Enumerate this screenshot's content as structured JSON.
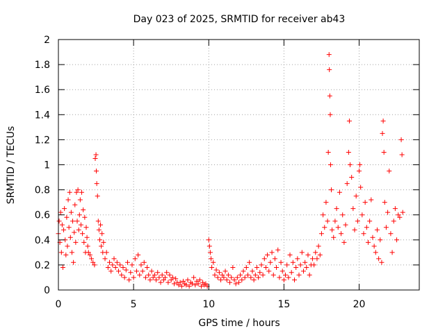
{
  "chart_data": {
    "type": "scatter",
    "title": "Day 023 of 2025, SRMTID for receiver ab43",
    "xlabel": "GPS time / hours",
    "ylabel": "SRMTID / TECUs",
    "xlim": [
      0,
      24
    ],
    "ylim": [
      0,
      2
    ],
    "xticks": [
      0,
      5,
      10,
      15,
      20
    ],
    "xtick_labels": [
      "0",
      "5",
      "10",
      "15",
      "20"
    ],
    "yticks": [
      0,
      0.2,
      0.4,
      0.6,
      0.8,
      1,
      1.2,
      1.4,
      1.6,
      1.8,
      2
    ],
    "ytick_labels": [
      "0",
      "0.2",
      "0.4",
      "0.6",
      "0.8",
      "1",
      "1.2",
      "1.4",
      "1.6",
      "1.8",
      "2"
    ],
    "grid": true,
    "marker": "+",
    "color": "#ff0000",
    "series": [
      {
        "name": "SRMTID",
        "points": [
          [
            0.0,
            0.45
          ],
          [
            0.05,
            0.55
          ],
          [
            0.1,
            0.38
          ],
          [
            0.15,
            0.62
          ],
          [
            0.2,
            0.3
          ],
          [
            0.25,
            0.52
          ],
          [
            0.3,
            0.18
          ],
          [
            0.35,
            0.48
          ],
          [
            0.4,
            0.65
          ],
          [
            0.45,
            0.4
          ],
          [
            0.5,
            0.28
          ],
          [
            0.55,
            0.58
          ],
          [
            0.6,
            0.35
          ],
          [
            0.65,
            0.72
          ],
          [
            0.7,
            0.5
          ],
          [
            0.75,
            0.78
          ],
          [
            0.8,
            0.42
          ],
          [
            0.85,
            0.62
          ],
          [
            0.9,
            0.3
          ],
          [
            0.95,
            0.55
          ],
          [
            1.0,
            0.22
          ],
          [
            1.05,
            0.46
          ],
          [
            1.1,
            0.68
          ],
          [
            1.15,
            0.38
          ],
          [
            1.2,
            0.78
          ],
          [
            1.25,
            0.55
          ],
          [
            1.3,
            0.8
          ],
          [
            1.35,
            0.48
          ],
          [
            1.4,
            0.6
          ],
          [
            1.45,
            0.72
          ],
          [
            1.5,
            0.52
          ],
          [
            1.55,
            0.78
          ],
          [
            1.6,
            0.45
          ],
          [
            1.65,
            0.64
          ],
          [
            1.7,
            0.38
          ],
          [
            1.75,
            0.58
          ],
          [
            1.8,
            0.3
          ],
          [
            1.85,
            0.5
          ],
          [
            1.9,
            0.42
          ],
          [
            1.95,
            0.35
          ],
          [
            2.0,
            0.3
          ],
          [
            2.1,
            0.28
          ],
          [
            2.2,
            0.25
          ],
          [
            2.3,
            0.22
          ],
          [
            2.4,
            0.2
          ],
          [
            2.45,
            1.05
          ],
          [
            2.5,
            1.08
          ],
          [
            2.52,
            0.95
          ],
          [
            2.55,
            0.85
          ],
          [
            2.6,
            0.75
          ],
          [
            2.65,
            0.55
          ],
          [
            2.7,
            0.48
          ],
          [
            2.75,
            0.4
          ],
          [
            2.8,
            0.52
          ],
          [
            2.85,
            0.35
          ],
          [
            2.9,
            0.45
          ],
          [
            2.95,
            0.3
          ],
          [
            3.0,
            0.38
          ],
          [
            3.1,
            0.25
          ],
          [
            3.2,
            0.3
          ],
          [
            3.3,
            0.18
          ],
          [
            3.4,
            0.22
          ],
          [
            3.5,
            0.15
          ],
          [
            3.6,
            0.2
          ],
          [
            3.7,
            0.25
          ],
          [
            3.8,
            0.18
          ],
          [
            3.9,
            0.22
          ],
          [
            4.0,
            0.15
          ],
          [
            4.1,
            0.2
          ],
          [
            4.2,
            0.12
          ],
          [
            4.3,
            0.18
          ],
          [
            4.4,
            0.1
          ],
          [
            4.5,
            0.16
          ],
          [
            4.6,
            0.22
          ],
          [
            4.7,
            0.08
          ],
          [
            4.8,
            0.14
          ],
          [
            4.9,
            0.2
          ],
          [
            5.0,
            0.1
          ],
          [
            5.1,
            0.25
          ],
          [
            5.2,
            0.15
          ],
          [
            5.3,
            0.28
          ],
          [
            5.4,
            0.12
          ],
          [
            5.5,
            0.2
          ],
          [
            5.6,
            0.15
          ],
          [
            5.7,
            0.22
          ],
          [
            5.8,
            0.1
          ],
          [
            5.9,
            0.18
          ],
          [
            6.0,
            0.12
          ],
          [
            6.1,
            0.08
          ],
          [
            6.2,
            0.15
          ],
          [
            6.3,
            0.1
          ],
          [
            6.4,
            0.12
          ],
          [
            6.5,
            0.08
          ],
          [
            6.6,
            0.14
          ],
          [
            6.7,
            0.1
          ],
          [
            6.8,
            0.06
          ],
          [
            6.9,
            0.12
          ],
          [
            7.0,
            0.08
          ],
          [
            7.1,
            0.1
          ],
          [
            7.2,
            0.14
          ],
          [
            7.3,
            0.06
          ],
          [
            7.4,
            0.12
          ],
          [
            7.5,
            0.08
          ],
          [
            7.6,
            0.1
          ],
          [
            7.7,
            0.05
          ],
          [
            7.8,
            0.09
          ],
          [
            7.9,
            0.06
          ],
          [
            8.0,
            0.04
          ],
          [
            8.1,
            0.06
          ],
          [
            8.2,
            0.03
          ],
          [
            8.3,
            0.07
          ],
          [
            8.4,
            0.05
          ],
          [
            8.5,
            0.04
          ],
          [
            8.6,
            0.08
          ],
          [
            8.7,
            0.03
          ],
          [
            8.8,
            0.06
          ],
          [
            8.9,
            0.05
          ],
          [
            9.0,
            0.1
          ],
          [
            9.1,
            0.04
          ],
          [
            9.2,
            0.07
          ],
          [
            9.3,
            0.05
          ],
          [
            9.4,
            0.08
          ],
          [
            9.5,
            0.03
          ],
          [
            9.6,
            0.06
          ],
          [
            9.7,
            0.04
          ],
          [
            9.8,
            0.05
          ],
          [
            9.9,
            0.03
          ],
          [
            10.0,
            0.4
          ],
          [
            10.05,
            0.35
          ],
          [
            10.1,
            0.3
          ],
          [
            10.15,
            0.25
          ],
          [
            10.2,
            0.18
          ],
          [
            10.3,
            0.22
          ],
          [
            10.4,
            0.12
          ],
          [
            10.5,
            0.16
          ],
          [
            10.6,
            0.1
          ],
          [
            10.7,
            0.14
          ],
          [
            10.8,
            0.08
          ],
          [
            10.9,
            0.12
          ],
          [
            11.0,
            0.1
          ],
          [
            11.1,
            0.15
          ],
          [
            11.2,
            0.08
          ],
          [
            11.3,
            0.12
          ],
          [
            11.4,
            0.06
          ],
          [
            11.5,
            0.1
          ],
          [
            11.6,
            0.18
          ],
          [
            11.7,
            0.08
          ],
          [
            11.8,
            0.05
          ],
          [
            11.9,
            0.1
          ],
          [
            12.0,
            0.06
          ],
          [
            12.1,
            0.12
          ],
          [
            12.2,
            0.08
          ],
          [
            12.3,
            0.15
          ],
          [
            12.4,
            0.1
          ],
          [
            12.5,
            0.18
          ],
          [
            12.6,
            0.12
          ],
          [
            12.7,
            0.22
          ],
          [
            12.8,
            0.1
          ],
          [
            12.9,
            0.15
          ],
          [
            13.0,
            0.08
          ],
          [
            13.1,
            0.12
          ],
          [
            13.2,
            0.18
          ],
          [
            13.3,
            0.1
          ],
          [
            13.4,
            0.14
          ],
          [
            13.5,
            0.2
          ],
          [
            13.6,
            0.12
          ],
          [
            13.7,
            0.25
          ],
          [
            13.8,
            0.18
          ],
          [
            13.9,
            0.28
          ],
          [
            14.0,
            0.15
          ],
          [
            14.1,
            0.22
          ],
          [
            14.2,
            0.3
          ],
          [
            14.3,
            0.12
          ],
          [
            14.4,
            0.25
          ],
          [
            14.5,
            0.18
          ],
          [
            14.6,
            0.32
          ],
          [
            14.7,
            0.1
          ],
          [
            14.8,
            0.22
          ],
          [
            14.9,
            0.15
          ],
          [
            15.0,
            0.08
          ],
          [
            15.1,
            0.12
          ],
          [
            15.2,
            0.2
          ],
          [
            15.3,
            0.1
          ],
          [
            15.4,
            0.28
          ],
          [
            15.5,
            0.14
          ],
          [
            15.6,
            0.22
          ],
          [
            15.7,
            0.08
          ],
          [
            15.8,
            0.18
          ],
          [
            15.9,
            0.25
          ],
          [
            16.0,
            0.12
          ],
          [
            16.1,
            0.2
          ],
          [
            16.2,
            0.3
          ],
          [
            16.3,
            0.15
          ],
          [
            16.4,
            0.22
          ],
          [
            16.5,
            0.18
          ],
          [
            16.6,
            0.28
          ],
          [
            16.7,
            0.12
          ],
          [
            16.8,
            0.2
          ],
          [
            16.9,
            0.25
          ],
          [
            17.0,
            0.2
          ],
          [
            17.1,
            0.3
          ],
          [
            17.2,
            0.25
          ],
          [
            17.3,
            0.35
          ],
          [
            17.4,
            0.28
          ],
          [
            17.5,
            0.45
          ],
          [
            17.6,
            0.6
          ],
          [
            17.7,
            0.5
          ],
          [
            17.8,
            0.7
          ],
          [
            17.9,
            0.55
          ],
          [
            17.95,
            1.1
          ],
          [
            18.0,
            1.88
          ],
          [
            18.02,
            1.76
          ],
          [
            18.05,
            1.55
          ],
          [
            18.08,
            1.4
          ],
          [
            18.1,
            1.0
          ],
          [
            18.15,
            0.8
          ],
          [
            18.2,
            0.48
          ],
          [
            18.3,
            0.42
          ],
          [
            18.4,
            0.55
          ],
          [
            18.5,
            0.65
          ],
          [
            18.6,
            0.5
          ],
          [
            18.7,
            0.78
          ],
          [
            18.8,
            0.45
          ],
          [
            18.9,
            0.6
          ],
          [
            19.0,
            0.38
          ],
          [
            19.1,
            0.52
          ],
          [
            19.2,
            0.85
          ],
          [
            19.3,
            1.1
          ],
          [
            19.35,
            1.35
          ],
          [
            19.4,
            1.0
          ],
          [
            19.5,
            0.9
          ],
          [
            19.6,
            0.65
          ],
          [
            19.7,
            0.48
          ],
          [
            19.8,
            0.75
          ],
          [
            19.9,
            0.55
          ],
          [
            20.0,
            0.95
          ],
          [
            20.05,
            1.0
          ],
          [
            20.1,
            0.82
          ],
          [
            20.2,
            0.6
          ],
          [
            20.3,
            0.45
          ],
          [
            20.4,
            0.7
          ],
          [
            20.5,
            0.5
          ],
          [
            20.6,
            0.38
          ],
          [
            20.7,
            0.55
          ],
          [
            20.8,
            0.72
          ],
          [
            20.9,
            0.42
          ],
          [
            21.0,
            0.35
          ],
          [
            21.1,
            0.3
          ],
          [
            21.2,
            0.48
          ],
          [
            21.3,
            0.25
          ],
          [
            21.4,
            0.4
          ],
          [
            21.5,
            0.22
          ],
          [
            21.55,
            1.25
          ],
          [
            21.6,
            1.35
          ],
          [
            21.65,
            1.1
          ],
          [
            21.7,
            0.7
          ],
          [
            21.8,
            0.5
          ],
          [
            21.9,
            0.62
          ],
          [
            22.0,
            0.95
          ],
          [
            22.1,
            0.45
          ],
          [
            22.2,
            0.3
          ],
          [
            22.3,
            0.55
          ],
          [
            22.4,
            0.65
          ],
          [
            22.5,
            0.4
          ],
          [
            22.6,
            0.6
          ],
          [
            22.7,
            0.58
          ],
          [
            22.8,
            1.2
          ],
          [
            22.85,
            1.08
          ],
          [
            22.9,
            0.62
          ]
        ]
      }
    ]
  }
}
